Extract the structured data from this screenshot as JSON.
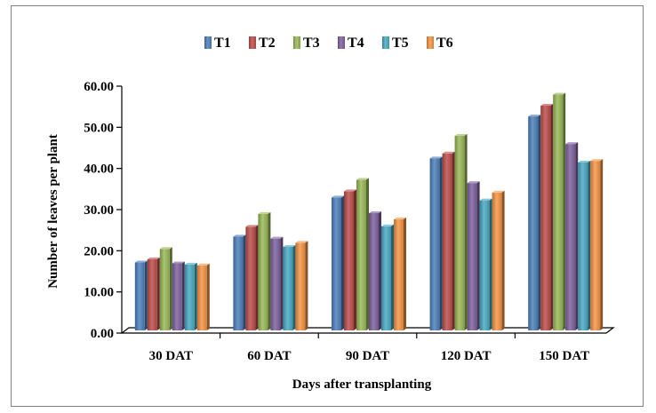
{
  "chart_data": {
    "type": "bar",
    "title": "",
    "xlabel": "Days after transplanting",
    "ylabel": "Number of leaves per plant",
    "categories": [
      "30 DAT",
      "60 DAT",
      "90 DAT",
      "120 DAT",
      "150 DAT"
    ],
    "ylim": [
      0,
      60
    ],
    "ytick_labels": [
      "0.00",
      "10.00",
      "20.00",
      "30.00",
      "40.00",
      "50.00",
      "60.00"
    ],
    "grid": false,
    "legend_position": "top",
    "series": [
      {
        "name": "T1",
        "color": "#4f81bd",
        "values": [
          16.5,
          22.8,
          32.3,
          41.8,
          52.0
        ]
      },
      {
        "name": "T2",
        "color": "#c0504d",
        "values": [
          17.3,
          25.2,
          33.8,
          43.0,
          54.6
        ]
      },
      {
        "name": "T3",
        "color": "#9bbb59",
        "values": [
          19.8,
          28.3,
          36.6,
          47.3,
          57.3
        ]
      },
      {
        "name": "T4",
        "color": "#8064a2",
        "values": [
          16.3,
          22.3,
          28.5,
          35.8,
          45.3
        ]
      },
      {
        "name": "T5",
        "color": "#4bacc6",
        "values": [
          16.0,
          20.3,
          25.3,
          31.6,
          40.8
        ]
      },
      {
        "name": "T6",
        "color": "#f79646",
        "values": [
          15.8,
          21.3,
          27.0,
          33.5,
          41.2
        ]
      }
    ]
  }
}
